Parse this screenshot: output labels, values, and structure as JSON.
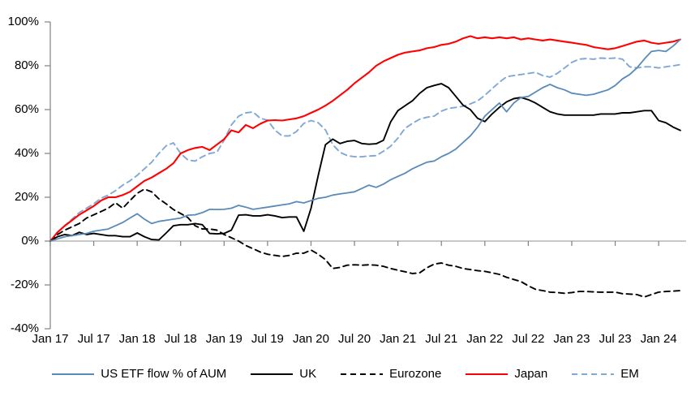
{
  "chart_data": {
    "type": "line",
    "title": "",
    "xlabel": "",
    "ylabel": "",
    "ylim": [
      -40,
      100
    ],
    "grid": "zero-line-only",
    "legend_position": "bottom",
    "x_unit": "months from Jan 2017, one value per month (Jan 2017 - Apr 2024)",
    "y_ticks": [
      {
        "v": 100,
        "label": "100%"
      },
      {
        "v": 80,
        "label": "80%"
      },
      {
        "v": 60,
        "label": "60%"
      },
      {
        "v": 40,
        "label": "40%"
      },
      {
        "v": 20,
        "label": "20%"
      },
      {
        "v": 0,
        "label": "0%"
      },
      {
        "v": -20,
        "label": "-20%"
      },
      {
        "v": -40,
        "label": "-40%"
      }
    ],
    "x_ticks": [
      {
        "m": 0,
        "label": "Jan 17"
      },
      {
        "m": 6,
        "label": "Jul 17"
      },
      {
        "m": 12,
        "label": "Jan 18"
      },
      {
        "m": 18,
        "label": "Jul 18"
      },
      {
        "m": 24,
        "label": "Jan 19"
      },
      {
        "m": 30,
        "label": "Jul 19"
      },
      {
        "m": 36,
        "label": "Jan 20"
      },
      {
        "m": 42,
        "label": "Jul 20"
      },
      {
        "m": 48,
        "label": "Jan 21"
      },
      {
        "m": 54,
        "label": "Jul 21"
      },
      {
        "m": 60,
        "label": "Jan 22"
      },
      {
        "m": 66,
        "label": "Jul 22"
      },
      {
        "m": 72,
        "label": "Jan 23"
      },
      {
        "m": 78,
        "label": "Jul 23"
      },
      {
        "m": 84,
        "label": "Jan 24"
      }
    ],
    "axis_colors": {
      "axis": "#808080",
      "zero_line": "#A6A6A6",
      "text": "#000000"
    },
    "series": [
      {
        "name": "US ETF flow % of AUM",
        "color": "#5A8AB9",
        "dash": "solid",
        "width": 1.8,
        "values": [
          0,
          1,
          2,
          2.5,
          3,
          3.5,
          4.5,
          5,
          5.5,
          7,
          8.5,
          10.5,
          12.5,
          10,
          8,
          9,
          9.5,
          10,
          10.5,
          11.8,
          12,
          13,
          14.5,
          14.4,
          14.5,
          15,
          16.3,
          15.5,
          14.5,
          15,
          15.5,
          16,
          16.5,
          17,
          18,
          17.4,
          18.5,
          19.5,
          20,
          21,
          21.5,
          22,
          22.5,
          24,
          25.5,
          24.5,
          26,
          28,
          29.5,
          31,
          33,
          34.5,
          36,
          36.5,
          38.5,
          40,
          42,
          45,
          48,
          52,
          57,
          60,
          63,
          59,
          63,
          65.5,
          66,
          68,
          70,
          71.5,
          70,
          69,
          67.5,
          67,
          66.5,
          67,
          68,
          69,
          71,
          74,
          76,
          79,
          83,
          86.5,
          87,
          86.5,
          89,
          92
        ]
      },
      {
        "name": "UK",
        "color": "#000000",
        "dash": "solid",
        "width": 1.9,
        "values": [
          0,
          2,
          3,
          2.5,
          4,
          3,
          3.5,
          3,
          2.5,
          2.5,
          2,
          2,
          3.7,
          2,
          0.7,
          0.5,
          3.7,
          7,
          7.5,
          7.5,
          8,
          7.5,
          3.5,
          3.3,
          3.5,
          5,
          11.8,
          12,
          11.5,
          11.5,
          12,
          11.5,
          10.7,
          11,
          11,
          4.5,
          15,
          30,
          44,
          46.5,
          44.5,
          45.5,
          45.9,
          44.5,
          44.2,
          44.4,
          46,
          54.4,
          59.5,
          61.8,
          64,
          67.4,
          70,
          71,
          71.8,
          70,
          66,
          62,
          60,
          56,
          54.5,
          58,
          61,
          63.5,
          65,
          65.5,
          64.5,
          63,
          61,
          59,
          58,
          57.5,
          57.5,
          57.5,
          57.5,
          57.5,
          58,
          58,
          58,
          58.5,
          58.5,
          59,
          59.5,
          59.5,
          55,
          54,
          52,
          50.5
        ]
      },
      {
        "name": "Eurozone",
        "color": "#000000",
        "dash": "dashed",
        "width": 1.9,
        "values": [
          0,
          3,
          5,
          6.5,
          8,
          10.5,
          12,
          13.5,
          15,
          17.5,
          15,
          18.5,
          21.8,
          23.7,
          22.5,
          19.3,
          17,
          14.4,
          12.6,
          10.7,
          7,
          5.5,
          5.5,
          5,
          3,
          1.5,
          0,
          -2,
          -3.5,
          -5,
          -6,
          -6.5,
          -7,
          -6.5,
          -5.5,
          -5.5,
          -4.1,
          -6,
          -8.5,
          -12.5,
          -12,
          -11,
          -10.8,
          -11,
          -10.8,
          -11,
          -11.5,
          -12.5,
          -13.3,
          -14,
          -14.8,
          -14.5,
          -12.2,
          -10.5,
          -10,
          -11,
          -11.5,
          -12.5,
          -13,
          -13.5,
          -13.8,
          -14.5,
          -15.2,
          -16.5,
          -17.5,
          -18.5,
          -20.4,
          -22,
          -22.6,
          -23.3,
          -23.5,
          -23.8,
          -23.5,
          -23,
          -23,
          -23.2,
          -23.3,
          -23.3,
          -23.3,
          -24,
          -24.2,
          -24.4,
          -25.5,
          -24.4,
          -23.3,
          -23,
          -22.8,
          -22.6
        ]
      },
      {
        "name": "Japan",
        "color": "#FF0000",
        "dash": "solid",
        "width": 2.1,
        "values": [
          0,
          4,
          7,
          9.5,
          12,
          14,
          16,
          18.5,
          20,
          20,
          21,
          22.5,
          25,
          27.5,
          29,
          31,
          33,
          35.5,
          40,
          41.5,
          42.5,
          43,
          41.5,
          44,
          46.5,
          50.5,
          49.6,
          53,
          51.5,
          53.5,
          55,
          55.2,
          55,
          55.5,
          56,
          57,
          58.5,
          60,
          61.8,
          64,
          66.5,
          69,
          72,
          74.5,
          77,
          80,
          82,
          83.5,
          85,
          86,
          86.5,
          87,
          88,
          88.5,
          89.5,
          90,
          91,
          92.5,
          93.5,
          92.5,
          93,
          92.5,
          93,
          92.5,
          93,
          92,
          92.5,
          92,
          91.5,
          92,
          91.5,
          91,
          90.5,
          90,
          89.5,
          88.5,
          88,
          87.5,
          88,
          89,
          90,
          91,
          91.5,
          90.5,
          90,
          90.5,
          91,
          92
        ]
      },
      {
        "name": "EM",
        "color": "#7FA9D4",
        "dash": "dashed",
        "width": 1.9,
        "values": [
          0,
          4,
          7,
          10,
          13,
          15,
          17,
          19.5,
          21,
          23,
          25.5,
          27.5,
          30,
          33,
          36,
          40,
          43.5,
          44.8,
          40,
          37,
          36.5,
          38.5,
          40,
          40.5,
          46,
          53,
          57,
          58.5,
          58.9,
          56,
          55.2,
          50.7,
          48,
          48,
          50,
          53.7,
          55,
          54,
          50.7,
          44,
          40.5,
          39,
          38.5,
          38.5,
          38.8,
          39,
          41,
          43.3,
          47,
          51.5,
          53.7,
          55.6,
          56.5,
          57,
          59.3,
          60.5,
          61,
          61.5,
          62.6,
          64,
          66.5,
          69.5,
          72.5,
          75,
          75.5,
          76,
          76.5,
          77,
          75.5,
          74.8,
          76.5,
          79,
          81.5,
          83,
          83.3,
          83,
          83.5,
          83.3,
          83.5,
          83,
          79.5,
          79,
          79.5,
          79.5,
          79,
          79.5,
          80,
          80.5
        ]
      }
    ]
  }
}
